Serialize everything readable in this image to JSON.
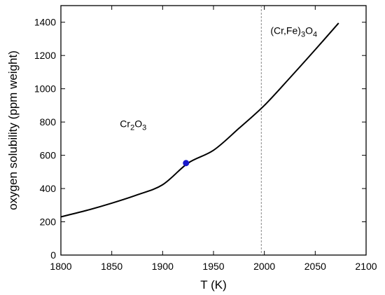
{
  "chart_data": {
    "type": "line",
    "xlabel": "T (K)",
    "ylabel": "oxygen solubility (ppm weight)",
    "xlim": [
      1800,
      2100
    ],
    "ylim": [
      0,
      1500
    ],
    "xticks": [
      "1800",
      "1850",
      "1900",
      "1950",
      "2000",
      "2050",
      "2100"
    ],
    "yticks": [
      "0",
      "200",
      "400",
      "600",
      "800",
      "1000",
      "1200",
      "1400"
    ],
    "series": [
      {
        "x": [
          1800,
          1825,
          1850,
          1875,
          1900,
          1925,
          1950,
          1975,
          2000,
          2025,
          2050,
          2073
        ],
        "y": [
          230,
          268,
          312,
          362,
          423,
          553,
          630,
          762,
          900,
          1065,
          1235,
          1395
        ],
        "color": "#000000"
      }
    ],
    "highlight_point": {
      "x": 1923,
      "y": 553,
      "color": "#1a1acc"
    },
    "vertical_line": {
      "x": 1997,
      "style": "dashed",
      "color": "#888888"
    },
    "annotations": [
      {
        "base": "Cr",
        "sub1": "2",
        "mid": "O",
        "sub2": "3",
        "x": 1858,
        "y": 770
      },
      {
        "base": "(Cr,Fe)",
        "sub1": "3",
        "mid": "O",
        "sub2": "4",
        "x": 2006,
        "y": 1330
      }
    ]
  }
}
